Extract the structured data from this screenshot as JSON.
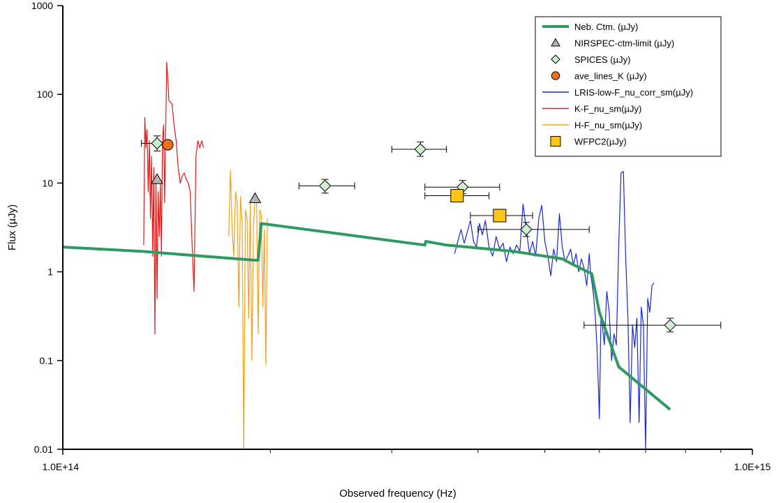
{
  "chart_data": {
    "type": "scatter",
    "title": "",
    "xlabel": "Observed frequency (Hz)",
    "ylabel": "Flux (µJy)",
    "x_scale": "log",
    "y_scale": "log",
    "xlim": [
      100000000000000.0,
      1000000000000000.0
    ],
    "ylim": [
      0.01,
      1000
    ],
    "x_tick_labels": [
      {
        "value": 100000000000000.0,
        "label": "1.0E+14"
      },
      {
        "value": 1000000000000000.0,
        "label": "1.0E+15"
      }
    ],
    "y_tick_labels": [
      {
        "value": 0.01,
        "label": "0.01"
      },
      {
        "value": 0.1,
        "label": "0.1"
      },
      {
        "value": 1,
        "label": "1"
      },
      {
        "value": 10,
        "label": "10"
      },
      {
        "value": 100,
        "label": "100"
      },
      {
        "value": 1000,
        "label": "1000"
      }
    ],
    "grid": false,
    "legend_position": "top-right",
    "series": [
      {
        "name": "Neb. Ctm. (µJy)",
        "kind": "line",
        "color": "#2e9960",
        "x": [
          100000000000000.0,
          130000000000000.0,
          190000000000000.0,
          192000000000000.0,
          194000000000000.0,
          335000000000000.0,
          336000000000000.0,
          360000000000000.0,
          450000000000000.0,
          530000000000000.0,
          550000000000000.0,
          585000000000000.0,
          600000000000000.0,
          640000000000000.0,
          760000000000000.0
        ],
        "y": [
          1.9,
          1.7,
          1.35,
          1.35,
          3.5,
          2.0,
          2.2,
          2.0,
          1.7,
          1.4,
          1.2,
          0.95,
          0.35,
          0.085,
          0.028
        ]
      },
      {
        "name": "NIRSPEC-ctm-limit (µJy)",
        "kind": "marker",
        "marker": "triangle",
        "color": "#b4b4b4",
        "x": [
          137000000000000.0,
          190000000000000.0
        ],
        "y": [
          11,
          6.7
        ]
      },
      {
        "name": "SPICES (µJy)",
        "kind": "marker",
        "marker": "diamond",
        "color": "#cdf1cd",
        "x": [
          137000000000000.0,
          240000000000000.0,
          330000000000000.0,
          380000000000000.0,
          470000000000000.0,
          760000000000000.0
        ],
        "y": [
          28,
          9.3,
          24,
          9.0,
          3.0,
          0.25
        ],
        "xerr_low": [
          130000000000000.0,
          220000000000000.0,
          300000000000000.0,
          335000000000000.0,
          400000000000000.0,
          570000000000000.0
        ],
        "xerr_high": [
          142000000000000.0,
          265000000000000.0,
          360000000000000.0,
          430000000000000.0,
          580000000000000.0,
          900000000000000.0
        ],
        "yerr_low": [
          23,
          7.7,
          20,
          7.6,
          2.5,
          0.21
        ],
        "yerr_high": [
          34,
          11,
          29,
          10.7,
          3.6,
          0.3
        ]
      },
      {
        "name": "ave_lines_K (µJy)",
        "kind": "marker",
        "marker": "circle",
        "color": "#f07020",
        "x": [
          142000000000000.0
        ],
        "y": [
          27
        ]
      },
      {
        "name": "LRIS-low-F_nu_corr_sm(µJy)",
        "kind": "spectrum",
        "color": "#1428d2",
        "x": [
          370000000000000.0,
          375000000000000.0,
          378000000000000.0,
          382000000000000.0,
          386000000000000.0,
          390000000000000.0,
          394000000000000.0,
          398000000000000.0,
          402000000000000.0,
          406000000000000.0,
          410000000000000.0,
          415000000000000.0,
          420000000000000.0,
          425000000000000.0,
          430000000000000.0,
          435000000000000.0,
          440000000000000.0,
          445000000000000.0,
          450000000000000.0,
          455000000000000.0,
          460000000000000.0,
          465000000000000.0,
          470000000000000.0,
          475000000000000.0,
          480000000000000.0,
          485000000000000.0,
          490000000000000.0,
          495000000000000.0,
          500000000000000.0,
          505000000000000.0,
          510000000000000.0,
          515000000000000.0,
          520000000000000.0,
          525000000000000.0,
          530000000000000.0,
          535000000000000.0,
          540000000000000.0,
          545000000000000.0,
          550000000000000.0,
          555000000000000.0,
          560000000000000.0,
          565000000000000.0,
          570000000000000.0,
          575000000000000.0,
          580000000000000.0,
          583000000000000.0,
          586000000000000.0,
          589000000000000.0,
          592000000000000.0,
          595000000000000.0,
          598000000000000.0,
          600000000000000.0,
          603000000000000.0,
          606000000000000.0,
          610000000000000.0,
          615000000000000.0,
          620000000000000.0,
          625000000000000.0,
          630000000000000.0,
          635000000000000.0,
          640000000000000.0,
          645000000000000.0,
          650000000000000.0,
          655000000000000.0,
          660000000000000.0,
          665000000000000.0,
          670000000000000.0,
          675000000000000.0,
          680000000000000.0,
          685000000000000.0,
          690000000000000.0,
          695000000000000.0,
          700000000000000.0,
          705000000000000.0,
          710000000000000.0,
          715000000000000.0,
          720000000000000.0
        ],
        "y": [
          1.6,
          2.4,
          3.0,
          2.1,
          2.8,
          3.8,
          2.2,
          1.9,
          3.5,
          2.6,
          3.8,
          1.9,
          1.5,
          2.5,
          1.8,
          2.1,
          1.3,
          1.9,
          1.6,
          2.0,
          1.7,
          5.8,
          3.0,
          1.6,
          2.2,
          1.5,
          4.0,
          5.6,
          2.2,
          1.5,
          0.9,
          1.8,
          1.3,
          4.5,
          1.9,
          1.3,
          1.5,
          1.8,
          1.2,
          1.6,
          1.0,
          1.4,
          1.1,
          0.7,
          1.6,
          0.9,
          0.7,
          0.5,
          0.3,
          0.15,
          0.05,
          0.022,
          0.3,
          0.25,
          0.15,
          0.6,
          0.35,
          0.1,
          0.2,
          0.15,
          2.0,
          13.0,
          13.5,
          1.5,
          0.3,
          0.02,
          0.25,
          0.14,
          0.3,
          0.02,
          0.4,
          0.25,
          0.01,
          0.5,
          0.35,
          0.7,
          0.75
        ]
      },
      {
        "name": "K-F_nu_sm(µJy)",
        "kind": "spectrum",
        "color": "#e01818",
        "x": [
          131000000000000.0,
          131500000000000.0,
          132000000000000.0,
          132500000000000.0,
          133000000000000.0,
          133500000000000.0,
          134000000000000.0,
          134500000000000.0,
          135000000000000.0,
          135500000000000.0,
          136000000000000.0,
          136500000000000.0,
          137000000000000.0,
          137500000000000.0,
          138000000000000.0,
          138500000000000.0,
          139000000000000.0,
          139500000000000.0,
          140000000000000.0,
          140500000000000.0,
          141000000000000.0,
          141500000000000.0,
          142000000000000.0,
          142500000000000.0,
          143000000000000.0,
          143500000000000.0,
          144000000000000.0,
          145000000000000.0,
          146000000000000.0,
          147000000000000.0,
          148000000000000.0,
          149000000000000.0,
          150000000000000.0,
          151000000000000.0,
          152000000000000.0,
          153000000000000.0,
          154000000000000.0,
          155000000000000.0,
          156000000000000.0,
          157000000000000.0,
          158000000000000.0,
          159000000000000.0,
          160000000000000.0
        ],
        "y": [
          2.0,
          55.0,
          25.0,
          40.0,
          8.0,
          30.0,
          4.0,
          20.0,
          1.5,
          15.0,
          0.2,
          12.0,
          0.5,
          8.0,
          2.5,
          10.0,
          1.5,
          30.0,
          45.0,
          6.0,
          40.0,
          230.0,
          150.0,
          85.0,
          82.0,
          80.0,
          78.0,
          45.0,
          30.0,
          15.0,
          10.0,
          12.0,
          13.0,
          11.0,
          10.0,
          8.0,
          2.0,
          0.6,
          20.0,
          30.0,
          25.0,
          30.0,
          25.0
        ]
      },
      {
        "name": "H-F_nu_sm(µJy)",
        "kind": "spectrum",
        "color": "#f5a014",
        "x": [
          174000000000000.0,
          175000000000000.0,
          176000000000000.0,
          177000000000000.0,
          178000000000000.0,
          179000000000000.0,
          180000000000000.0,
          181000000000000.0,
          182000000000000.0,
          183000000000000.0,
          184000000000000.0,
          185000000000000.0,
          186000000000000.0,
          187000000000000.0,
          188000000000000.0,
          189000000000000.0,
          190000000000000.0,
          191000000000000.0,
          192000000000000.0,
          193000000000000.0,
          194000000000000.0,
          195000000000000.0,
          196000000000000.0,
          197000000000000.0,
          198000000000000.0
        ],
        "y": [
          2.5,
          14.0,
          3.0,
          1.5,
          8.0,
          6.0,
          0.4,
          7.0,
          3.5,
          0.01,
          5.0,
          4.0,
          0.3,
          6.0,
          0.1,
          3.0,
          7.0,
          6.0,
          0.2,
          5.0,
          4.5,
          0.4,
          3.0,
          0.09,
          4.0
        ]
      },
      {
        "name": "WFPC2(µJy)",
        "kind": "marker",
        "marker": "square",
        "color": "#ffc414",
        "x": [
          373000000000000.0,
          430000000000000.0
        ],
        "y": [
          7.2,
          4.3
        ],
        "xerr_low": [
          335000000000000.0,
          390000000000000.0
        ],
        "xerr_high": [
          415000000000000.0,
          480000000000000.0
        ]
      }
    ]
  }
}
